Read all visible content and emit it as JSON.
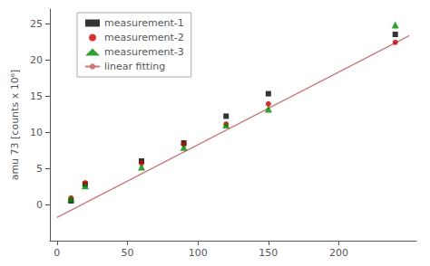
{
  "chart_data": {
    "type": "scatter",
    "ylabel": "amu 73 [counts x 10⁶]",
    "xlim": [
      -5,
      255
    ],
    "xticks": [
      0,
      50,
      100,
      150,
      200
    ],
    "ylim": [
      -5,
      27
    ],
    "yticks": [
      0,
      5,
      10,
      15,
      20,
      25
    ],
    "grid": false,
    "legend": "upper left",
    "series": [
      {
        "name": "measurement-1",
        "color": "#000000",
        "marker": "square",
        "x": [
          10,
          20,
          60,
          90,
          120,
          150,
          240
        ],
        "values": [
          0.5,
          2.8,
          6.0,
          8.5,
          12.2,
          15.3,
          23.5
        ]
      },
      {
        "name": "measurement-2",
        "color": "#cc0000",
        "marker": "circle",
        "x": [
          10,
          20,
          60,
          90,
          120,
          150,
          240
        ],
        "values": [
          0.9,
          3.0,
          5.7,
          8.3,
          11.1,
          13.9,
          22.4
        ]
      },
      {
        "name": "measurement-3",
        "color": "#008800",
        "marker": "triangle",
        "x": [
          10,
          20,
          60,
          90,
          120,
          150,
          240
        ],
        "values": [
          0.8,
          2.6,
          5.2,
          7.9,
          11.0,
          13.2,
          24.8
        ]
      },
      {
        "name": "linear fitting",
        "type": "line",
        "color": "#cc7777",
        "line_style": "solid",
        "x": [
          0,
          250
        ],
        "values": [
          -1.8,
          23.325
        ]
      }
    ]
  }
}
